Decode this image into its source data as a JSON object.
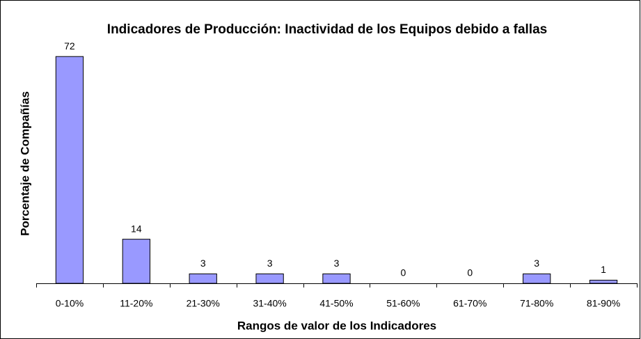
{
  "chart_data": {
    "type": "bar",
    "title": "Indicadores de Producción: Inactividad de los Equipos debido a fallas",
    "x_label": "Rangos de valor de los Indicadores",
    "y_label": "Porcentaje de Compañías",
    "categories": [
      "0-10%",
      "11-20%",
      "21-30%",
      "31-40%",
      "41-50%",
      "51-60%",
      "61-70%",
      "71-80%",
      "81-90%"
    ],
    "values": [
      72,
      14,
      3,
      3,
      3,
      0,
      0,
      3,
      1
    ],
    "color": "#9999ff",
    "ylim": [
      0,
      80
    ]
  }
}
